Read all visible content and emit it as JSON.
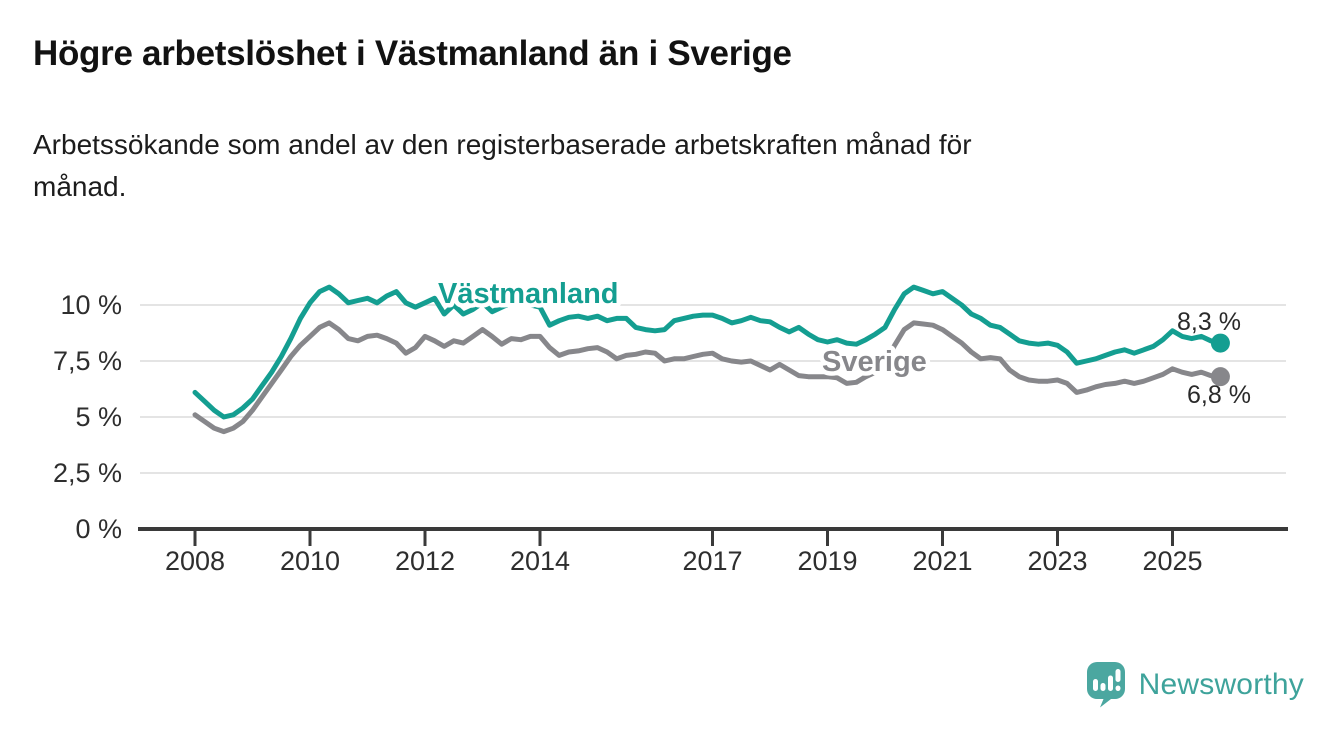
{
  "header": {
    "title": "Högre arbetslöshet i Västmanland än i Sverige",
    "subtitle_lines": [
      "Arbetssökande som andel av den registerbaserade arbetskraften månad för",
      "månad."
    ]
  },
  "footer": {
    "brand": "Newsworthy"
  },
  "colors": {
    "teal": "#149E91",
    "gray": "#87878B",
    "axis": "#3A3A3A",
    "grid": "#DBDBDB",
    "text": "#2E2E2E",
    "title_text": "#121212",
    "logo_teal": "#4BA7A0",
    "logo_text": "#3EA39B"
  },
  "chart_data": {
    "type": "line",
    "grid": "horizontal",
    "legend": "inline-labels",
    "x_axis": {
      "unit": "year",
      "range": [
        2007.0,
        2027.0
      ],
      "tick_values": [
        2008,
        2010,
        2012,
        2014,
        2017,
        2019,
        2021,
        2023,
        2025
      ],
      "tick_labels": [
        "2008",
        "2010",
        "2012",
        "2014",
        "2017",
        "2019",
        "2021",
        "2023",
        "2025"
      ]
    },
    "y_axis": {
      "unit": "%",
      "range": [
        0,
        11.3
      ],
      "tick_values": [
        0,
        2.5,
        5,
        7.5,
        10
      ],
      "tick_labels": [
        "0 %",
        "2,5 %",
        "5 %",
        "7,5 %",
        "10 %"
      ]
    },
    "sampling": {
      "start_year": 2008.0,
      "step_years": 0.1666667
    },
    "series": [
      {
        "name": "Västmanland",
        "color": "#149E91",
        "end_label": "8,3 %",
        "end_value": 8.3,
        "values": [
          6.1,
          5.7,
          5.3,
          5.0,
          5.1,
          5.4,
          5.8,
          6.4,
          7.0,
          7.7,
          8.5,
          9.4,
          10.1,
          10.6,
          10.8,
          10.5,
          10.1,
          10.2,
          10.3,
          10.1,
          10.4,
          10.6,
          10.1,
          9.9,
          10.1,
          10.3,
          9.6,
          10.0,
          9.6,
          9.8,
          10.1,
          9.7,
          9.9,
          10.1,
          10.2,
          10.0,
          9.9,
          9.1,
          9.3,
          9.45,
          9.5,
          9.4,
          9.5,
          9.3,
          9.4,
          9.4,
          9.0,
          8.9,
          8.85,
          8.9,
          9.3,
          9.4,
          9.5,
          9.55,
          9.55,
          9.4,
          9.2,
          9.3,
          9.45,
          9.3,
          9.25,
          9.0,
          8.8,
          9.0,
          8.7,
          8.45,
          8.35,
          8.45,
          8.3,
          8.25,
          8.45,
          8.7,
          9.0,
          9.8,
          10.5,
          10.8,
          10.65,
          10.5,
          10.6,
          10.3,
          10.0,
          9.6,
          9.4,
          9.1,
          9.0,
          8.7,
          8.4,
          8.3,
          8.25,
          8.3,
          8.2,
          7.9,
          7.4,
          7.5,
          7.6,
          7.75,
          7.9,
          8.0,
          7.85,
          8.0,
          8.15,
          8.45,
          8.85,
          8.6,
          8.5,
          8.6,
          8.4,
          8.3
        ]
      },
      {
        "name": "Sverige",
        "color": "#87878B",
        "end_label": "6,8 %",
        "end_value": 6.8,
        "values": [
          5.1,
          4.8,
          4.5,
          4.35,
          4.5,
          4.8,
          5.3,
          5.9,
          6.5,
          7.1,
          7.7,
          8.2,
          8.6,
          9.0,
          9.2,
          8.9,
          8.5,
          8.4,
          8.6,
          8.65,
          8.5,
          8.3,
          7.85,
          8.1,
          8.6,
          8.4,
          8.15,
          8.4,
          8.3,
          8.6,
          8.9,
          8.6,
          8.25,
          8.5,
          8.45,
          8.6,
          8.6,
          8.1,
          7.75,
          7.9,
          7.95,
          8.05,
          8.1,
          7.9,
          7.6,
          7.75,
          7.8,
          7.9,
          7.85,
          7.5,
          7.6,
          7.6,
          7.7,
          7.8,
          7.85,
          7.6,
          7.5,
          7.45,
          7.5,
          7.3,
          7.1,
          7.35,
          7.1,
          6.85,
          6.8,
          6.8,
          6.8,
          6.75,
          6.5,
          6.55,
          6.8,
          7.0,
          7.35,
          8.2,
          8.9,
          9.2,
          9.15,
          9.1,
          8.9,
          8.6,
          8.3,
          7.9,
          7.6,
          7.65,
          7.6,
          7.1,
          6.8,
          6.65,
          6.6,
          6.6,
          6.65,
          6.5,
          6.1,
          6.2,
          6.35,
          6.45,
          6.5,
          6.6,
          6.5,
          6.6,
          6.75,
          6.9,
          7.15,
          7.0,
          6.9,
          7.0,
          6.85,
          6.8
        ]
      }
    ]
  }
}
